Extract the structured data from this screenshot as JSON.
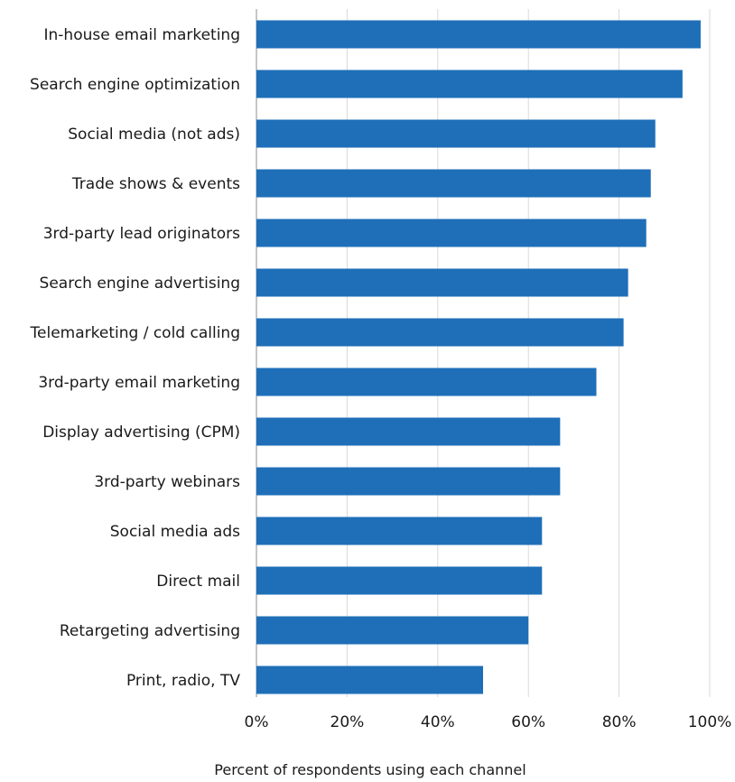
{
  "chart_data": {
    "type": "bar",
    "orientation": "horizontal",
    "categories": [
      "In-house email marketing",
      "Search engine optimization",
      "Social media (not ads)",
      "Trade shows & events",
      "3rd-party lead originators",
      "Search engine advertising",
      "Telemarketing / cold calling",
      "3rd-party email marketing",
      "Display advertising (CPM)",
      "3rd-party webinars",
      "Social media ads",
      "Direct mail",
      "Retargeting advertising",
      "Print, radio, TV"
    ],
    "values": [
      98,
      94,
      88,
      87,
      86,
      82,
      81,
      75,
      67,
      67,
      63,
      63,
      60,
      50
    ],
    "xlabel": "Percent of respondents using each channel",
    "ylabel": "",
    "xlim": [
      0,
      100
    ],
    "xticks": [
      0,
      20,
      40,
      60,
      80,
      100
    ],
    "xtick_labels": [
      "0%",
      "20%",
      "40%",
      "60%",
      "80%",
      "100%"
    ],
    "grid": true,
    "legend": "none",
    "bar_color": "#1f6fb8"
  }
}
